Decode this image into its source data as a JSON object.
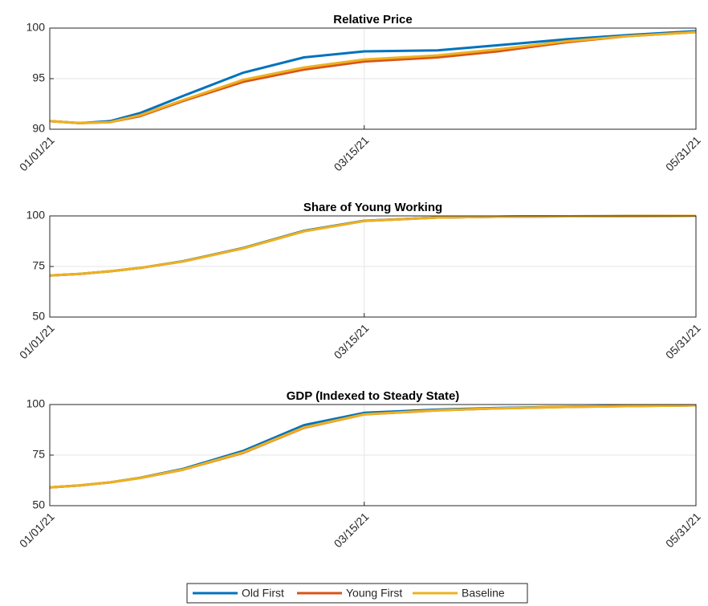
{
  "chart_data": [
    {
      "type": "line",
      "title": "Relative Price",
      "grid": true,
      "legend": "bottom",
      "x": [
        "01/01/21",
        "01/08/21",
        "01/15/21",
        "01/22/21",
        "02/01/21",
        "02/15/21",
        "03/01/21",
        "03/15/21",
        "04/01/21",
        "04/15/21",
        "05/01/21",
        "05/15/21",
        "05/31/21"
      ],
      "xlim": [
        "01/01/21",
        "05/31/21"
      ],
      "xticks": [
        "01/01/21",
        "03/15/21",
        "05/31/21"
      ],
      "ylim": [
        90,
        100
      ],
      "yticks": [
        90,
        95,
        100
      ],
      "series": [
        {
          "name": "Old First",
          "color": "#0072BD",
          "values": [
            90.8,
            90.6,
            90.8,
            91.6,
            93.3,
            95.6,
            97.1,
            97.7,
            97.8,
            98.3,
            98.9,
            99.3,
            99.7
          ]
        },
        {
          "name": "Young First",
          "color": "#D95319",
          "values": [
            90.8,
            90.6,
            90.7,
            91.3,
            92.8,
            94.7,
            95.9,
            96.7,
            97.1,
            97.7,
            98.6,
            99.2,
            99.6
          ]
        },
        {
          "name": "Baseline",
          "color": "#EDB120",
          "values": [
            90.8,
            90.6,
            90.7,
            91.4,
            92.9,
            94.9,
            96.1,
            96.9,
            97.3,
            97.9,
            98.7,
            99.2,
            99.6
          ]
        }
      ]
    },
    {
      "type": "line",
      "title": "Share of Young Working",
      "grid": true,
      "x": [
        "01/01/21",
        "01/08/21",
        "01/15/21",
        "01/22/21",
        "02/01/21",
        "02/15/21",
        "03/01/21",
        "03/15/21",
        "04/01/21",
        "04/15/21",
        "05/01/21",
        "05/15/21",
        "05/31/21"
      ],
      "xlim": [
        "01/01/21",
        "05/31/21"
      ],
      "xticks": [
        "01/01/21",
        "03/15/21",
        "05/31/21"
      ],
      "ylim": [
        50,
        100
      ],
      "yticks": [
        50,
        75,
        100
      ],
      "series": [
        {
          "name": "Old First",
          "color": "#0072BD",
          "values": [
            70.5,
            71.3,
            72.6,
            74.3,
            77.6,
            84.2,
            92.6,
            97.6,
            99.2,
            99.6,
            99.8,
            99.9,
            100
          ]
        },
        {
          "name": "Young First",
          "color": "#D95319",
          "values": [
            70.5,
            71.3,
            72.6,
            74.3,
            77.5,
            84.0,
            92.4,
            97.5,
            99.2,
            99.6,
            99.8,
            99.9,
            100
          ]
        },
        {
          "name": "Baseline",
          "color": "#EDB120",
          "values": [
            70.5,
            71.3,
            72.6,
            74.3,
            77.5,
            84.0,
            92.4,
            97.5,
            99.2,
            99.6,
            99.8,
            99.9,
            100
          ]
        }
      ]
    },
    {
      "type": "line",
      "title": "GDP (Indexed to Steady State)",
      "grid": true,
      "x": [
        "01/01/21",
        "01/08/21",
        "01/15/21",
        "01/22/21",
        "02/01/21",
        "02/15/21",
        "03/01/21",
        "03/15/21",
        "04/01/21",
        "04/15/21",
        "05/01/21",
        "05/15/21",
        "05/31/21"
      ],
      "xlim": [
        "01/01/21",
        "05/31/21"
      ],
      "xticks": [
        "01/01/21",
        "03/15/21",
        "05/31/21"
      ],
      "ylim": [
        50,
        100
      ],
      "yticks": [
        50,
        75,
        100
      ],
      "series": [
        {
          "name": "Old First",
          "color": "#0072BD",
          "values": [
            59,
            60,
            61.5,
            63.8,
            68.2,
            77.2,
            89.8,
            95.9,
            97.5,
            98.3,
            98.9,
            99.3,
            99.6
          ]
        },
        {
          "name": "Young First",
          "color": "#D95319",
          "values": [
            59,
            60,
            61.5,
            63.7,
            67.8,
            76.2,
            88.5,
            95.1,
            97.1,
            98.1,
            98.8,
            99.2,
            99.6
          ]
        },
        {
          "name": "Baseline",
          "color": "#EDB120",
          "values": [
            59,
            60,
            61.5,
            63.7,
            67.9,
            76.4,
            88.7,
            95.2,
            97.2,
            98.1,
            98.8,
            99.2,
            99.6
          ]
        }
      ]
    }
  ]
}
